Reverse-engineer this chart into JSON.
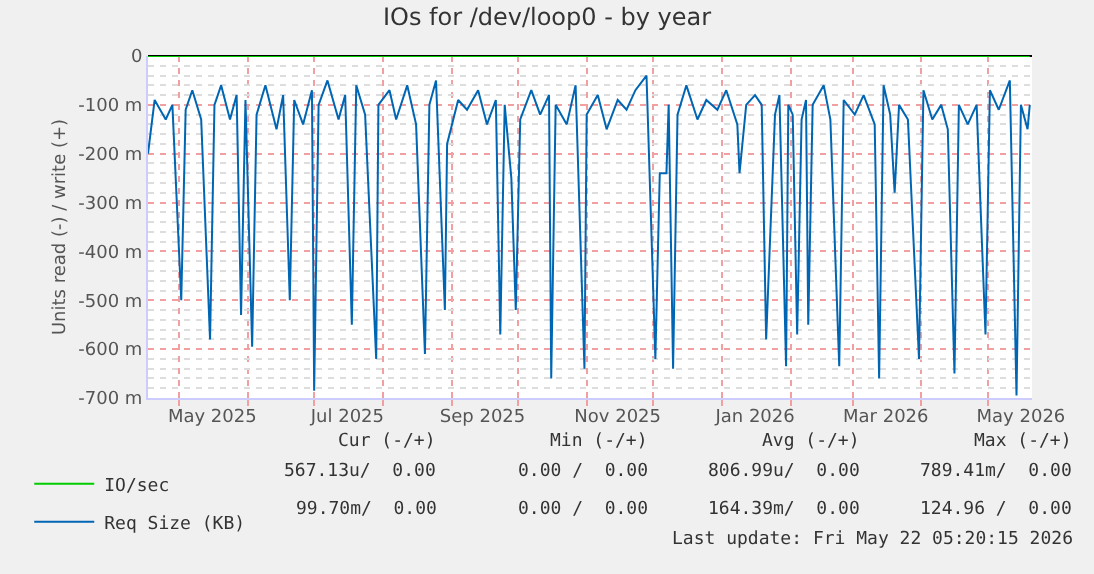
{
  "chart_data": {
    "type": "line",
    "title": "IOs for /dev/loop0 - by year",
    "ylabel": "Units read (-) / write (+)",
    "xlim": [
      "2025-04-17",
      "2026-05-21"
    ],
    "xticks": [
      {
        "value": "2025-05-16",
        "label": "May 2025"
      },
      {
        "value": "2025-07-16",
        "label": "Jul 2025"
      },
      {
        "value": "2025-09-15",
        "label": "Sep 2025"
      },
      {
        "value": "2025-11-15",
        "label": "Nov 2025"
      },
      {
        "value": "2026-01-16",
        "label": "Jan 2026"
      },
      {
        "value": "2026-03-16",
        "label": "Mar 2026"
      },
      {
        "value": "2026-05-16",
        "label": "May 2026"
      }
    ],
    "ylim": [
      -700,
      0
    ],
    "yticks": [
      {
        "value": 0,
        "label": "0"
      },
      {
        "value": -100,
        "label": "-100 m"
      },
      {
        "value": -200,
        "label": "-200 m"
      },
      {
        "value": -300,
        "label": "-300 m"
      },
      {
        "value": -400,
        "label": "-400 m"
      },
      {
        "value": -500,
        "label": "-500 m"
      },
      {
        "value": -600,
        "label": "-600 m"
      },
      {
        "value": -700,
        "label": "-700 m"
      }
    ],
    "grid": true,
    "legend": "bottom left",
    "marker": "none",
    "line_style": "solid",
    "series": [
      {
        "name": "IO/sec",
        "color": "#00cc00",
        "x": [
          "2025-04-17",
          "2026-05-20"
        ],
        "values": [
          0,
          0
        ]
      },
      {
        "name": "Req Size (KB)",
        "color": "#0066b3",
        "x": [
          "2025-04-17",
          "2025-04-20",
          "2025-04-25",
          "2025-04-28",
          "2025-05-02",
          "2025-05-04",
          "2025-05-07",
          "2025-05-11",
          "2025-05-15",
          "2025-05-17",
          "2025-05-20",
          "2025-05-24",
          "2025-05-27",
          "2025-05-29",
          "2025-05-31",
          "2025-06-03",
          "2025-06-05",
          "2025-06-09",
          "2025-06-14",
          "2025-06-17",
          "2025-06-20",
          "2025-06-22",
          "2025-06-26",
          "2025-06-30",
          "2025-07-01",
          "2025-07-03",
          "2025-07-07",
          "2025-07-12",
          "2025-07-15",
          "2025-07-18",
          "2025-07-20",
          "2025-07-24",
          "2025-07-29",
          "2025-07-30",
          "2025-08-04",
          "2025-08-07",
          "2025-08-12",
          "2025-08-16",
          "2025-08-20",
          "2025-08-22",
          "2025-08-25",
          "2025-08-29",
          "2025-08-30",
          "2025-09-04",
          "2025-09-08",
          "2025-09-13",
          "2025-09-17",
          "2025-09-21",
          "2025-09-23",
          "2025-09-25",
          "2025-09-28",
          "2025-09-30",
          "2025-10-02",
          "2025-10-07",
          "2025-10-11",
          "2025-10-15",
          "2025-10-16",
          "2025-10-18",
          "2025-10-23",
          "2025-10-27",
          "2025-10-31",
          "2025-11-01",
          "2025-11-06",
          "2025-11-10",
          "2025-11-15",
          "2025-11-19",
          "2025-11-23",
          "2025-11-28",
          "2025-12-02",
          "2025-12-04",
          "2025-12-07",
          "2025-12-08",
          "2025-12-10",
          "2025-12-12",
          "2025-12-16",
          "2025-12-21",
          "2025-12-25",
          "2025-12-30",
          "2026-01-03",
          "2026-01-08",
          "2026-01-09",
          "2026-01-12",
          "2026-01-16",
          "2026-01-19",
          "2026-01-21",
          "2026-01-23",
          "2026-01-25",
          "2026-01-27",
          "2026-01-30",
          "2026-01-31",
          "2026-02-02",
          "2026-02-04",
          "2026-02-06",
          "2026-02-08",
          "2026-02-09",
          "2026-02-11",
          "2026-02-16",
          "2026-02-19",
          "2026-02-23",
          "2026-02-25",
          "2026-03-02",
          "2026-03-06",
          "2026-03-11",
          "2026-03-13",
          "2026-03-15",
          "2026-03-18",
          "2026-03-20",
          "2026-03-22",
          "2026-03-26",
          "2026-03-31",
          "2026-04-02",
          "2026-04-06",
          "2026-04-10",
          "2026-04-13",
          "2026-04-16",
          "2026-04-18",
          "2026-04-22",
          "2026-04-26",
          "2026-04-30",
          "2026-05-02",
          "2026-05-06",
          "2026-05-11",
          "2026-05-14",
          "2026-05-16",
          "2026-05-19",
          "2026-05-20"
        ],
        "values": [
          -200,
          -90,
          -130,
          -100,
          -500,
          -110,
          -70,
          -130,
          -580,
          -100,
          -60,
          -130,
          -80,
          -530,
          -90,
          -595,
          -120,
          -60,
          -150,
          -80,
          -500,
          -90,
          -140,
          -70,
          -685,
          -100,
          -50,
          -130,
          -80,
          -550,
          -60,
          -120,
          -620,
          -100,
          -70,
          -130,
          -60,
          -140,
          -610,
          -100,
          -50,
          -520,
          -180,
          -90,
          -110,
          -70,
          -140,
          -90,
          -570,
          -100,
          -250,
          -520,
          -130,
          -70,
          -120,
          -80,
          -660,
          -100,
          -140,
          -60,
          -640,
          -120,
          -80,
          -150,
          -90,
          -110,
          -70,
          -40,
          -620,
          -240,
          -240,
          -100,
          -640,
          -120,
          -60,
          -130,
          -90,
          -110,
          -70,
          -140,
          -240,
          -100,
          -80,
          -100,
          -580,
          -350,
          -120,
          -80,
          -635,
          -100,
          -120,
          -570,
          -130,
          -90,
          -550,
          -100,
          -60,
          -130,
          -635,
          -90,
          -120,
          -80,
          -140,
          -660,
          -60,
          -120,
          -280,
          -100,
          -130,
          -620,
          -70,
          -130,
          -100,
          -150,
          -650,
          -100,
          -140,
          -100,
          -570,
          -70,
          -110,
          -50,
          -695,
          -100,
          -150,
          -100
        ]
      }
    ],
    "annotations": [
      "Cur (-/+)",
      "Min (-/+)",
      "Avg (-/+)",
      "Max (-/+)",
      "567.13u/  0.00",
      "0.00 /  0.00",
      "806.99u/  0.00",
      "789.41m/  0.00",
      "99.70m/  0.00",
      "0.00 /  0.00",
      "164.39m/  0.00",
      "124.96 /  0.00",
      "Last update: Fri May 22 05:20:15 2026"
    ]
  }
}
